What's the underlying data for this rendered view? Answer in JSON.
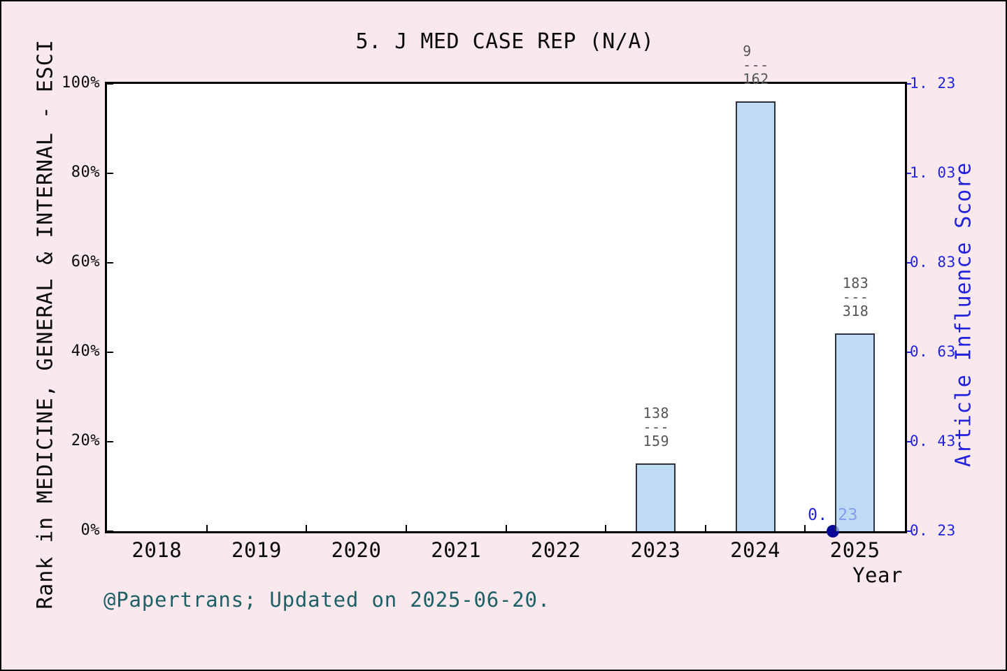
{
  "window": {
    "background": "#f9e9ed",
    "plot_background": "#ffffff",
    "border_color": "#000000"
  },
  "footer": "@Papertrans; Updated on 2025-06-20.",
  "chart_data": {
    "type": "bar",
    "title": "5. J MED CASE REP (N/A)",
    "xlabel": "Year",
    "ylabel_left": "Rank in MEDICINE, GENERAL & INTERNAL - ESCI",
    "ylabel_right": "Article Influence Score",
    "categories": [
      "2018",
      "2019",
      "2020",
      "2021",
      "2022",
      "2023",
      "2024",
      "2025"
    ],
    "left_axis": {
      "tick_labels": [
        "0%",
        "20%",
        "40%",
        "60%",
        "80%",
        "100%"
      ],
      "values": [
        0,
        20,
        40,
        60,
        80,
        100
      ],
      "range": [
        0,
        100
      ]
    },
    "right_axis": {
      "tick_labels": [
        "0. 23",
        "0. 43",
        "0. 63",
        "0. 83",
        "1. 03",
        "1. 23"
      ],
      "values": [
        0.23,
        0.43,
        0.63,
        0.83,
        1.03,
        1.23
      ],
      "range": [
        0.23,
        1.23
      ]
    },
    "bars": [
      {
        "category": "2023",
        "rank_pct": 15.2,
        "fraction": {
          "numerator": "138",
          "denominator": "159"
        }
      },
      {
        "category": "2024",
        "rank_pct": 96.1,
        "fraction": {
          "numerator": "9",
          "denominator": "162"
        }
      },
      {
        "category": "2025",
        "rank_pct": 44.2,
        "fraction": {
          "numerator": "183",
          "denominator": "318"
        }
      }
    ],
    "scatter": [
      {
        "label": "0. 23",
        "value": 0.23,
        "x_frac": 0.9097
      }
    ],
    "grid": false,
    "legend": "none",
    "colors": {
      "bar_fill": "#a6cdf0",
      "bar_fill_alpha": 0.72,
      "bar_edge": "#14141e",
      "dot": "#0a0a99",
      "right_axis": "#2222dd",
      "fraction_label": "#55555a",
      "footer": "#1d6066",
      "axis": "#000000"
    }
  }
}
